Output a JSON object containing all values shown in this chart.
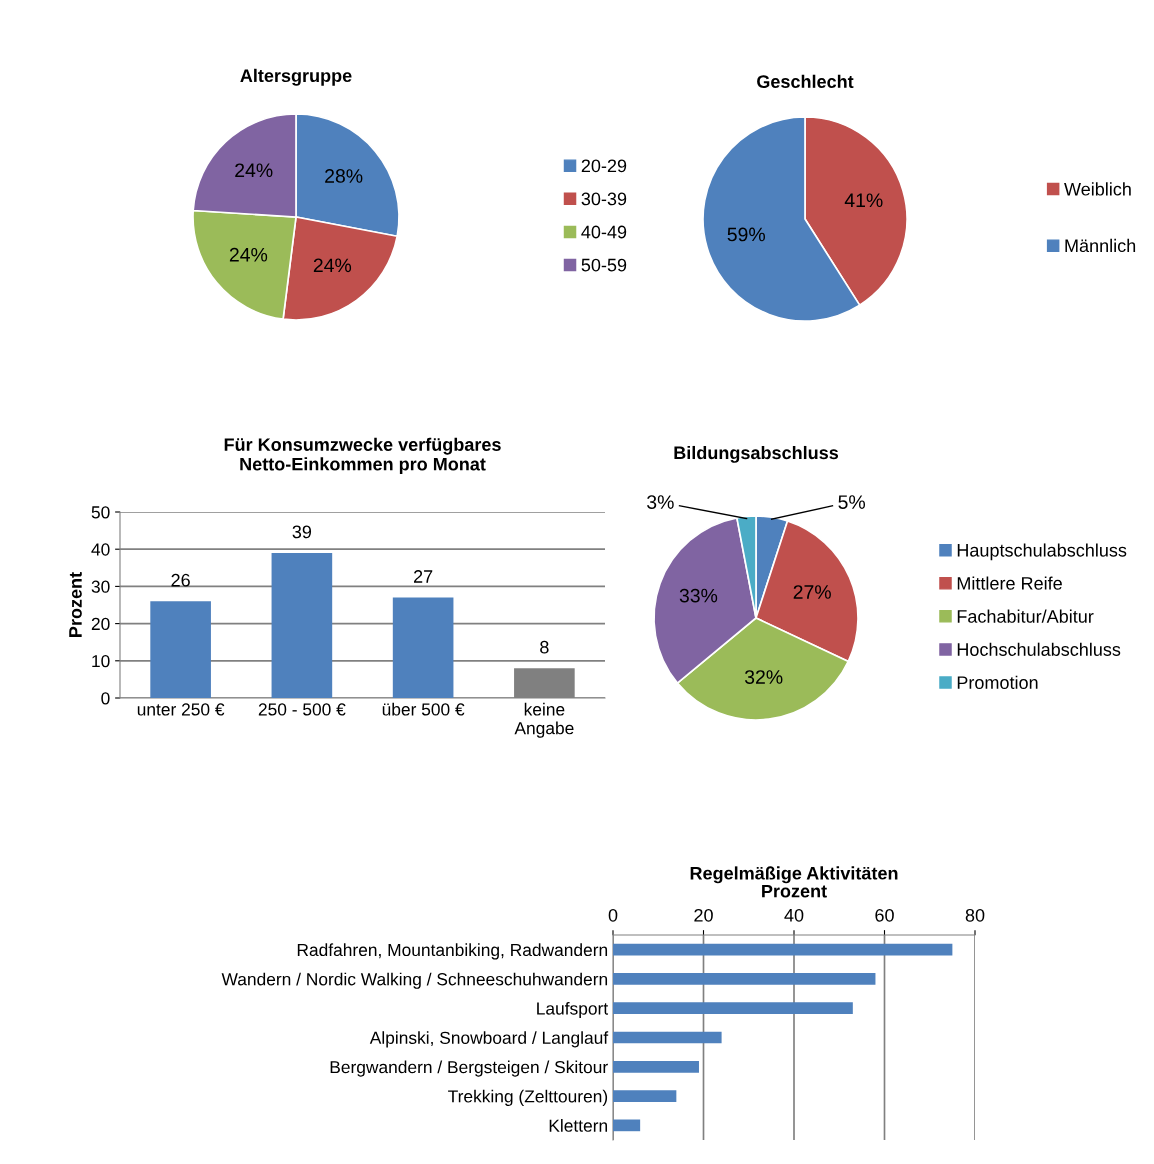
{
  "chart_data": [
    {
      "type": "pie",
      "title": "Altersgruppe",
      "categories": [
        "20-29",
        "30-39",
        "40-49",
        "50-59"
      ],
      "values": [
        28,
        24,
        24,
        24
      ],
      "value_labels": [
        "28%",
        "24%",
        "24%",
        "24%"
      ],
      "colors": [
        "#4f81bd",
        "#c0504d",
        "#9bbb59",
        "#8064a2"
      ],
      "legend": "right"
    },
    {
      "type": "pie",
      "title": "Geschlecht",
      "categories": [
        "Weiblich",
        "Männlich"
      ],
      "values": [
        41,
        59
      ],
      "value_labels": [
        "41%",
        "59%"
      ],
      "colors": [
        "#c0504d",
        "#4f81bd"
      ],
      "legend": "right"
    },
    {
      "type": "bar",
      "title": "Für Konsumzwecke verfügbares\nNetto-Einkommen pro Monat",
      "ylabel": "Prozent",
      "categories": [
        "unter 250 €",
        "250 - 500 €",
        "über 500 €",
        "keine\nAngabe"
      ],
      "values": [
        26,
        39,
        27,
        8
      ],
      "colors": [
        "#4f81bd",
        "#4f81bd",
        "#4f81bd",
        "#808080"
      ],
      "ylim": [
        0,
        50
      ],
      "yticks": [
        0,
        10,
        20,
        30,
        40,
        50
      ],
      "grid": "y",
      "data_labels": true
    },
    {
      "type": "pie",
      "title": "Bildungsabschluss",
      "categories": [
        "Hauptschulabschluss",
        "Mittlere Reife",
        "Fachabitur/Abitur",
        "Hochschulabschluss",
        "Promotion"
      ],
      "values": [
        5,
        27,
        32,
        33,
        3
      ],
      "value_labels": [
        "5%",
        "27%",
        "32%",
        "33%",
        "3%"
      ],
      "colors": [
        "#4f81bd",
        "#c0504d",
        "#9bbb59",
        "#8064a2",
        "#4bacc6"
      ],
      "legend": "right"
    },
    {
      "type": "bar",
      "orientation": "horizontal",
      "title": "Regelmäßige Aktivitäten",
      "xlabel": "Prozent",
      "categories": [
        "Radfahren, Mountanbiking, Radwandern",
        "Wandern / Nordic Walking / Schneeschuhwandern",
        "Laufsport",
        "Alpinski, Snowboard / Langlauf",
        "Bergwandern / Bergsteigen / Skitour",
        "Trekking (Zelttouren)",
        "Klettern"
      ],
      "values": [
        75,
        58,
        53,
        24,
        19,
        14,
        6
      ],
      "color": "#4f81bd",
      "xlim": [
        0,
        80
      ],
      "xticks": [
        0,
        20,
        40,
        60,
        80
      ],
      "grid": "x"
    }
  ]
}
